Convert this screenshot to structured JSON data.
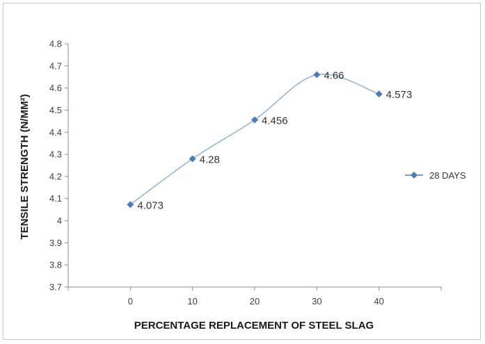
{
  "chart_data": {
    "type": "line",
    "title": "",
    "xlabel": "PERCENTAGE REPLACEMENT OF STEEL SLAG",
    "ylabel": "TENSILE STRENGTH (N/MM²)",
    "x": [
      0,
      10,
      20,
      30,
      40
    ],
    "xlim": [
      -10,
      50
    ],
    "xticks": [
      0,
      10,
      20,
      30,
      40
    ],
    "ylim": [
      3.7,
      4.8
    ],
    "yticks": [
      3.7,
      3.8,
      3.9,
      4,
      4.1,
      4.2,
      4.3,
      4.4,
      4.5,
      4.6,
      4.7,
      4.8
    ],
    "series": [
      {
        "name": "28 DAYS",
        "values": [
          4.073,
          4.28,
          4.456,
          4.66,
          4.573
        ],
        "data_labels": [
          "4.073",
          "4.28",
          "4.456",
          "4.66",
          "4.573"
        ],
        "color": "#4a7ebb",
        "marker": "diamond",
        "smooth": true
      }
    ],
    "grid": false,
    "legend": "right"
  }
}
